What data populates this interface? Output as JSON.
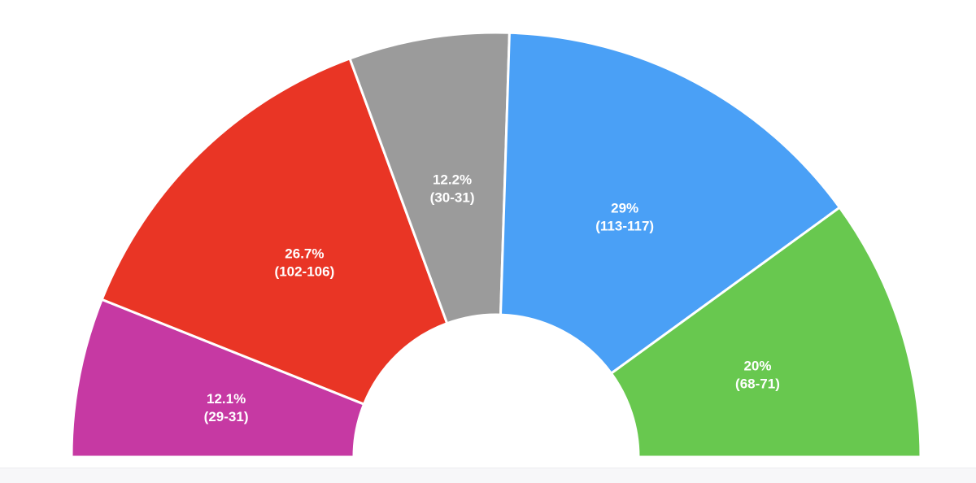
{
  "chart_data": {
    "type": "pie",
    "subtype": "semicircle-donut",
    "slices": [
      {
        "label_pct": "12.1%",
        "label_range": "(29-31)",
        "value": 12.1,
        "color": "#c639a3"
      },
      {
        "label_pct": "26.7%",
        "label_range": "(102-106)",
        "value": 26.7,
        "color": "#e93525"
      },
      {
        "label_pct": "12.2%",
        "label_range": "(30-31)",
        "value": 12.2,
        "color": "#9b9b9b"
      },
      {
        "label_pct": "29%",
        "label_range": "(113-117)",
        "value": 29,
        "color": "#4aa0f6"
      },
      {
        "label_pct": "20%",
        "label_range": "(68-71)",
        "value": 20,
        "color": "#68c84f"
      }
    ],
    "separator_color": "#ffffff",
    "background_color": "#ffffff"
  }
}
